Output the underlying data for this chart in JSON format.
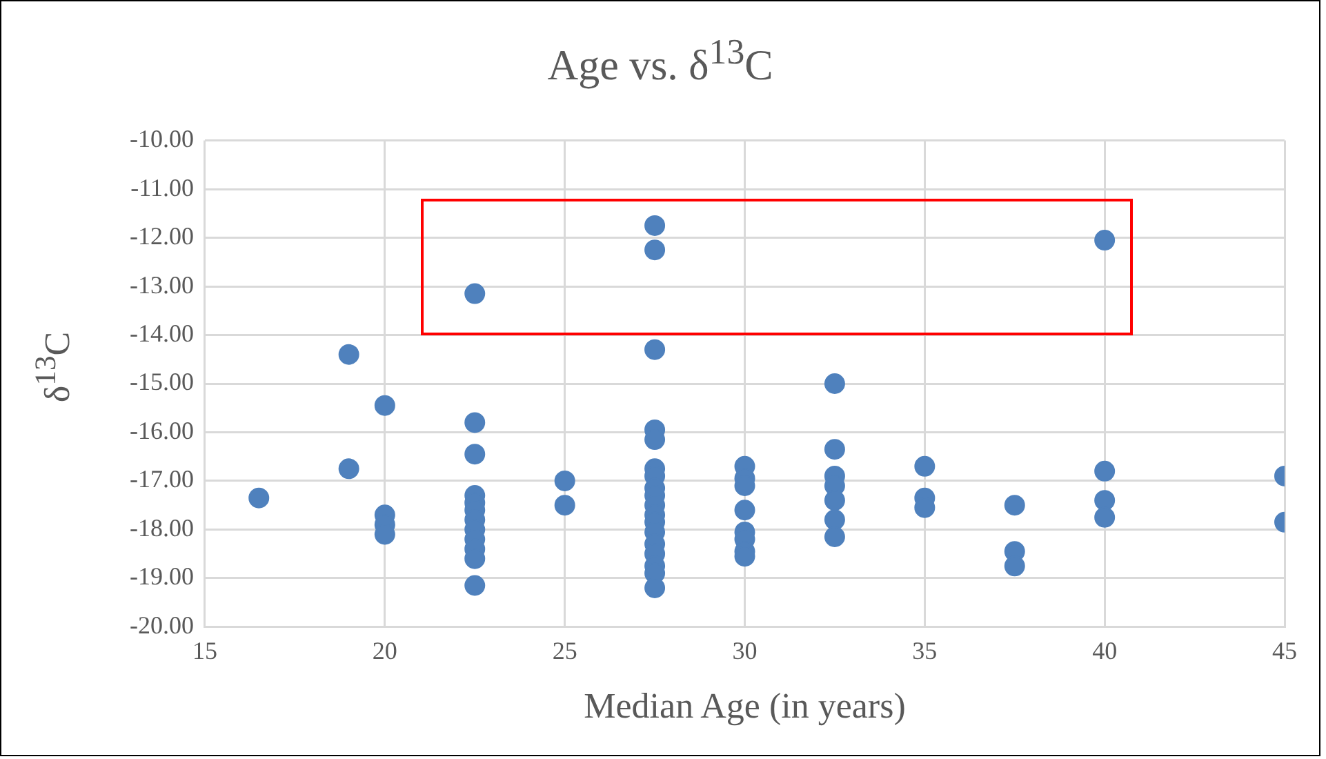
{
  "chart_data": {
    "type": "scatter",
    "title": "Age vs. δ$^{13}$C",
    "xlabel": "Median Age (in years)",
    "ylabel": "δ$^{13}$C",
    "series": [
      {
        "color": "#4f81bd",
        "x": [
          16.5,
          19,
          19,
          20,
          20,
          20,
          20,
          22.5,
          22.5,
          22.5,
          22.5,
          22.5,
          22.5,
          22.5,
          22.5,
          22.5,
          22.5,
          22.5,
          22.5,
          25,
          25,
          27.5,
          27.5,
          27.5,
          27.5,
          27.5,
          27.5,
          27.5,
          27.5,
          27.5,
          27.5,
          27.5,
          27.5,
          27.5,
          27.5,
          27.5,
          27.5,
          27.5,
          27.5,
          30,
          30,
          30,
          30,
          30,
          30,
          30,
          30,
          32.5,
          32.5,
          32.5,
          32.5,
          32.5,
          32.5,
          32.5,
          35,
          35,
          35,
          37.5,
          37.5,
          37.5,
          40,
          40,
          40,
          40,
          45,
          45
        ],
        "values": [
          -17.35,
          -14.4,
          -16.75,
          -15.45,
          -17.7,
          -17.9,
          -18.1,
          -13.15,
          -15.8,
          -16.45,
          -17.3,
          -17.45,
          -17.6,
          -17.8,
          -18.0,
          -18.2,
          -18.4,
          -18.6,
          -19.15,
          -17.0,
          -17.5,
          -11.75,
          -12.25,
          -14.3,
          -15.95,
          -16.15,
          -16.75,
          -16.9,
          -17.15,
          -17.3,
          -17.5,
          -17.7,
          -17.85,
          -18.05,
          -18.3,
          -18.5,
          -18.75,
          -18.9,
          -19.2,
          -16.7,
          -16.95,
          -17.1,
          -17.6,
          -18.05,
          -18.2,
          -18.45,
          -18.55,
          -15.0,
          -16.35,
          -16.9,
          -17.1,
          -17.4,
          -17.8,
          -18.15,
          -16.7,
          -17.35,
          -17.55,
          -17.5,
          -18.45,
          -18.75,
          -12.05,
          -16.8,
          -17.4,
          -17.75,
          -16.9,
          -17.85
        ]
      }
    ],
    "xlim": [
      15,
      45
    ],
    "xticks": [
      15,
      20,
      25,
      30,
      35,
      40,
      45
    ],
    "ylim": [
      -20,
      -10
    ],
    "yticks": [
      {
        "value": -20,
        "label": "-20.00"
      },
      {
        "value": -19,
        "label": "-19.00"
      },
      {
        "value": -18,
        "label": "-18.00"
      },
      {
        "value": -17,
        "label": "-17.00"
      },
      {
        "value": -16,
        "label": "-16.00"
      },
      {
        "value": -15,
        "label": "-15.00"
      },
      {
        "value": -14,
        "label": "-14.00"
      },
      {
        "value": -13,
        "label": "-13.00"
      },
      {
        "value": -12,
        "label": "-12.00"
      },
      {
        "value": -11,
        "label": "-11.00"
      },
      {
        "value": -10,
        "label": "-10.00"
      }
    ],
    "grid": true,
    "legend": false,
    "marker": "circle"
  }
}
